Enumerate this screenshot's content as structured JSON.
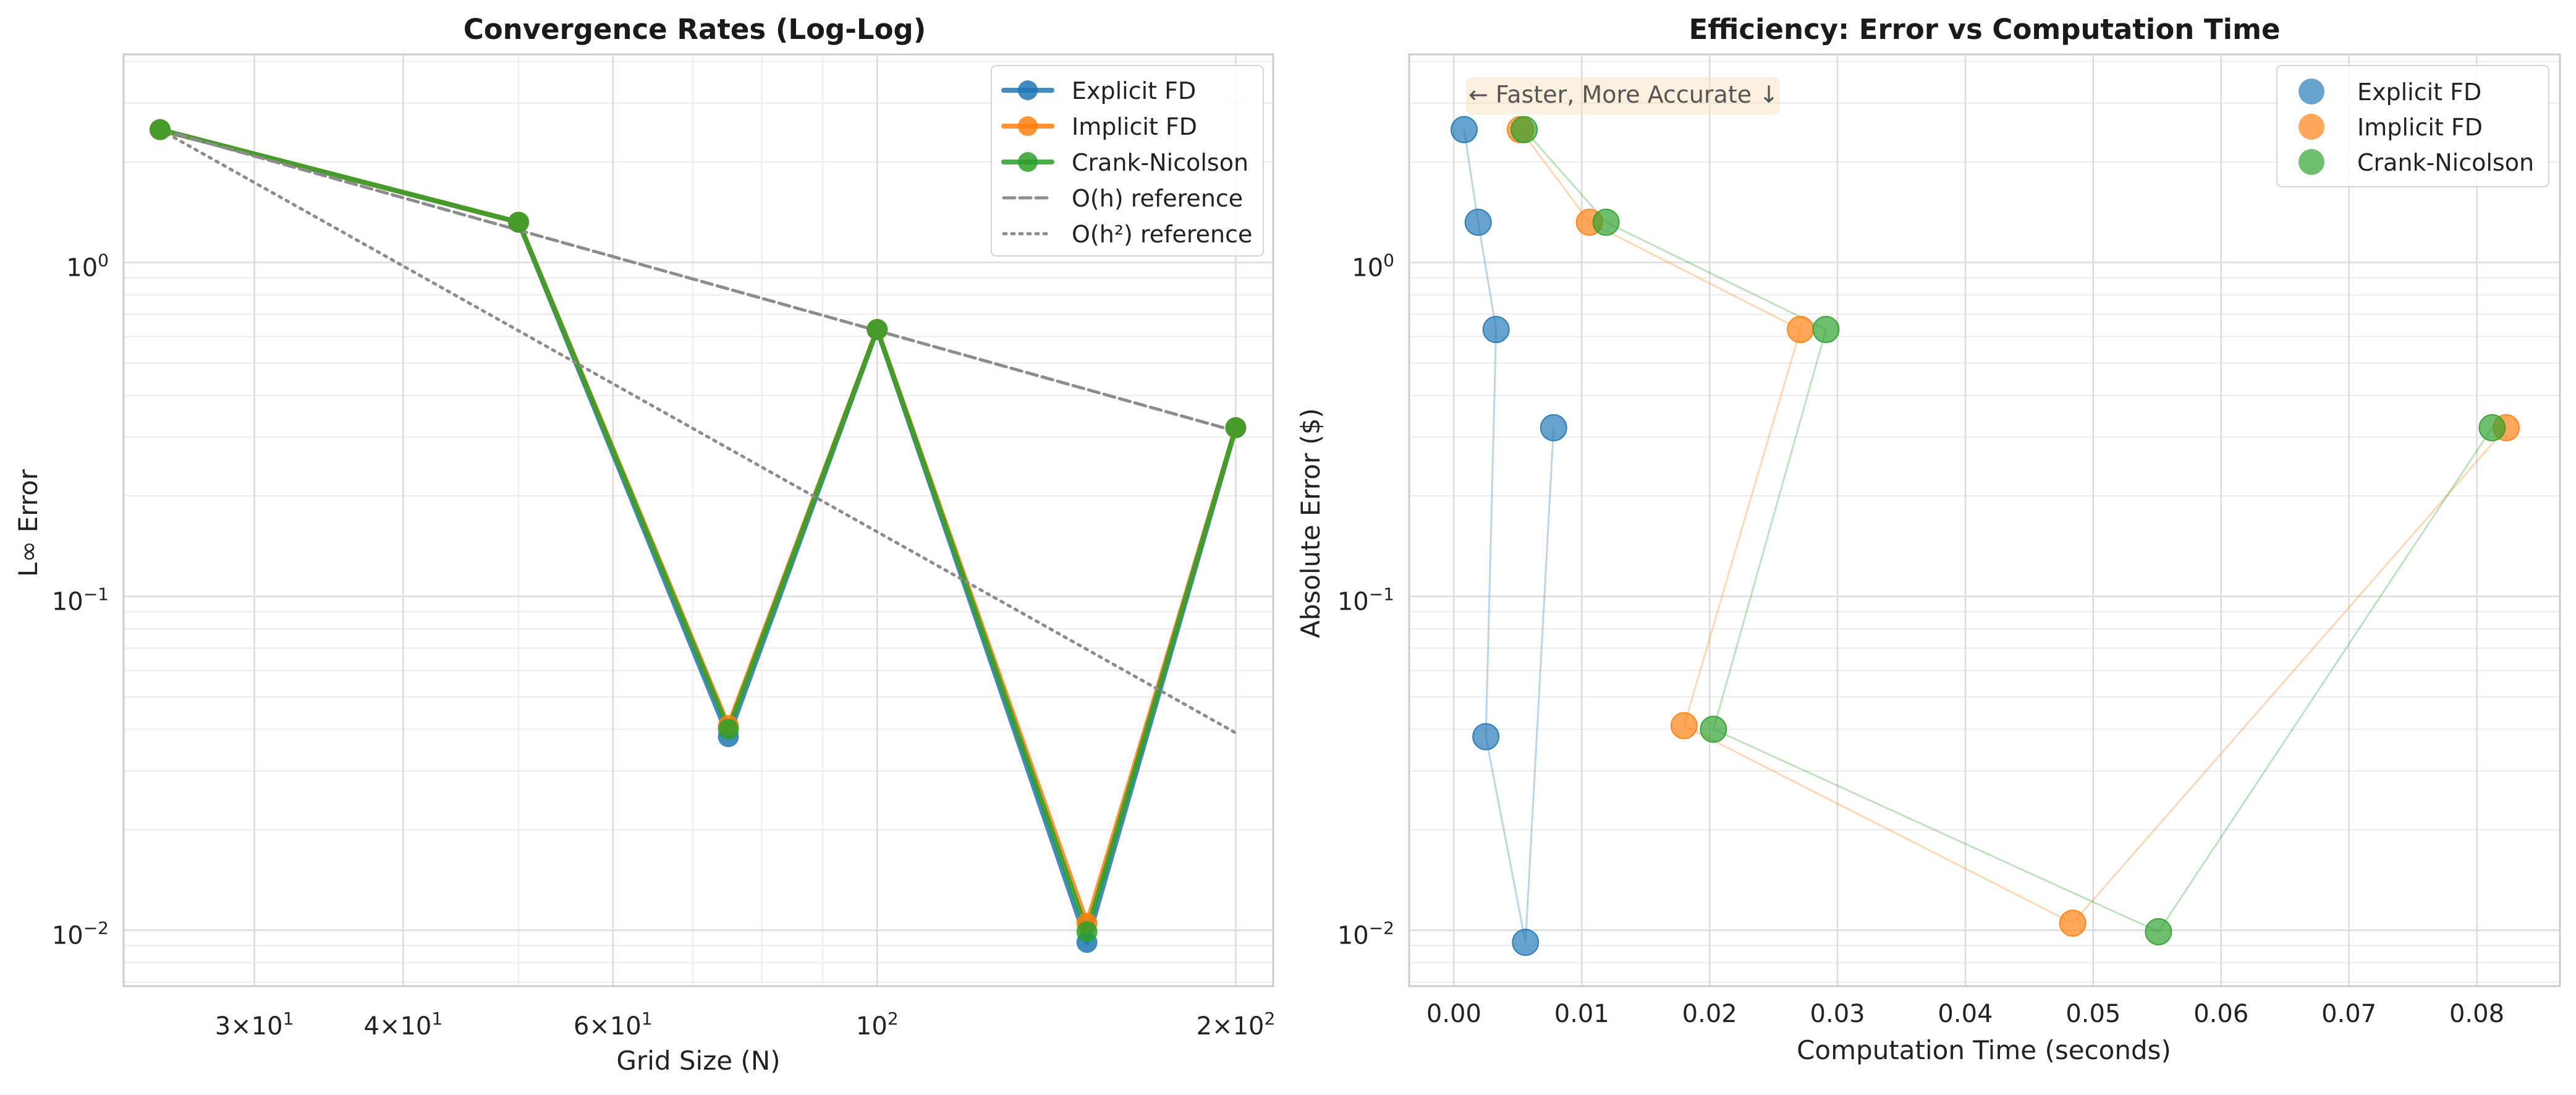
{
  "chart_data": [
    {
      "type": "line",
      "title": "Convergence Rates (Log-Log)",
      "xlabel": "Grid Size (N)",
      "ylabel": "L∞ Error",
      "xscale": "log",
      "yscale": "log",
      "xlim": [
        23.3,
        215
      ],
      "ylim": [
        0.0068,
        4.2
      ],
      "grid": true,
      "legend_position": "upper right",
      "x_ticks": [
        {
          "value": 30,
          "base": "3×10",
          "exp": "1"
        },
        {
          "value": 40,
          "base": "4×10",
          "exp": "1"
        },
        {
          "value": 60,
          "base": "6×10",
          "exp": "1"
        },
        {
          "value": 100,
          "base": "10",
          "exp": "2"
        },
        {
          "value": 200,
          "base": "2×10",
          "exp": "2"
        }
      ],
      "y_ticks": [
        {
          "value": 1,
          "base": "10",
          "exp": "0"
        },
        {
          "value": 0.1,
          "base": "10",
          "exp": "−1"
        },
        {
          "value": 0.01,
          "base": "10",
          "exp": "−2"
        }
      ],
      "x": [
        25,
        50,
        75,
        100,
        150,
        200
      ],
      "series": [
        {
          "name": "Explicit FD",
          "color": "#1f77b4",
          "style": "solid-marker",
          "values": [
            2.5,
            1.32,
            0.038,
            0.63,
            0.0092,
            0.32
          ]
        },
        {
          "name": "Implicit FD",
          "color": "#ff7f0e",
          "style": "solid-marker",
          "values": [
            2.5,
            1.32,
            0.041,
            0.63,
            0.0105,
            0.32
          ]
        },
        {
          "name": "Crank-Nicolson",
          "color": "#2ca02c",
          "style": "solid-marker",
          "values": [
            2.5,
            1.32,
            0.04,
            0.63,
            0.0099,
            0.32
          ]
        },
        {
          "name": "O(h) reference",
          "color": "#8c8c8c",
          "style": "dashed",
          "x": [
            25,
            200
          ],
          "values": [
            2.5,
            0.3125
          ]
        },
        {
          "name": "O(h²) reference",
          "color": "#8c8c8c",
          "style": "dotted",
          "x": [
            25,
            200
          ],
          "values": [
            2.5,
            0.039
          ]
        }
      ]
    },
    {
      "type": "scatter",
      "title": "Efficiency: Error vs Computation Time",
      "xlabel": "Computation Time (seconds)",
      "ylabel": "Absolute Error ($)",
      "xscale": "linear",
      "yscale": "log",
      "xlim": [
        -0.0035,
        0.0865
      ],
      "ylim": [
        0.0068,
        4.2
      ],
      "grid": true,
      "legend_position": "upper right",
      "x_ticks": [
        {
          "value": 0.0,
          "label": "0.00"
        },
        {
          "value": 0.01,
          "label": "0.01"
        },
        {
          "value": 0.02,
          "label": "0.02"
        },
        {
          "value": 0.03,
          "label": "0.03"
        },
        {
          "value": 0.04,
          "label": "0.04"
        },
        {
          "value": 0.05,
          "label": "0.05"
        },
        {
          "value": 0.06,
          "label": "0.06"
        },
        {
          "value": 0.07,
          "label": "0.07"
        },
        {
          "value": 0.08,
          "label": "0.08"
        }
      ],
      "y_ticks": [
        {
          "value": 1,
          "base": "10",
          "exp": "0"
        },
        {
          "value": 0.1,
          "base": "10",
          "exp": "−1"
        },
        {
          "value": 0.01,
          "base": "10",
          "exp": "−2"
        }
      ],
      "annotation": "← Faster, More Accurate ↓",
      "series": [
        {
          "name": "Explicit FD",
          "color": "#1f77b4",
          "x": [
            0.0008,
            0.0019,
            0.0033,
            0.0025,
            0.0056,
            0.0078
          ],
          "values": [
            2.5,
            1.32,
            0.63,
            0.038,
            0.0092,
            0.32
          ]
        },
        {
          "name": "Implicit FD",
          "color": "#ff7f0e",
          "x": [
            0.0052,
            0.0106,
            0.0271,
            0.018,
            0.0484,
            0.0823
          ],
          "values": [
            2.5,
            1.32,
            0.63,
            0.041,
            0.0105,
            0.32
          ]
        },
        {
          "name": "Crank-Nicolson",
          "color": "#2ca02c",
          "x": [
            0.0055,
            0.0119,
            0.0291,
            0.0203,
            0.0551,
            0.0812
          ],
          "values": [
            2.5,
            1.32,
            0.63,
            0.04,
            0.0099,
            0.32
          ]
        }
      ]
    }
  ]
}
